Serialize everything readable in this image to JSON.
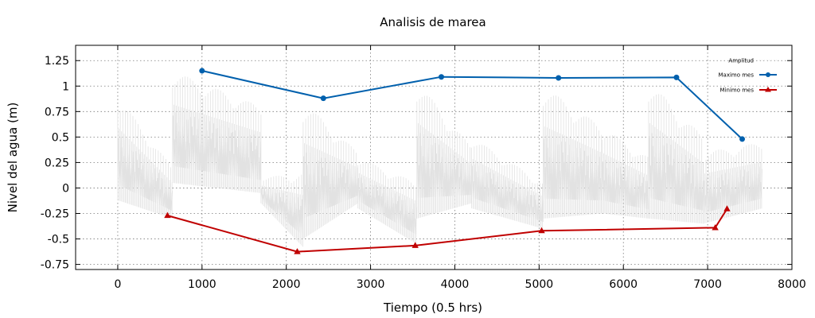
{
  "chart_data": {
    "type": "line",
    "title": "Analisis de marea",
    "xlabel": "Tiempo (0.5 hrs)",
    "ylabel": "Nivel del agua (m)",
    "xlim": [
      -500,
      8000
    ],
    "ylim": [
      -0.8,
      1.4
    ],
    "xticks": [
      0,
      1000,
      2000,
      3000,
      4000,
      5000,
      6000,
      7000,
      8000
    ],
    "xtick_labels": [
      "0",
      "1000",
      "2000",
      "3000",
      "4000",
      "5000",
      "6000",
      "7000",
      "8000"
    ],
    "yticks": [
      -0.75,
      -0.5,
      -0.25,
      0,
      0.25,
      0.5,
      0.75,
      1,
      1.25
    ],
    "ytick_labels": [
      "-0.75",
      "-0.5",
      "-0.25",
      "0",
      "0.25",
      "0.5",
      "0.75",
      "1",
      "1.25"
    ],
    "grid": true,
    "legend_position": "top-right",
    "series": [
      {
        "name": "Amplitud",
        "color": "#e2e2e2",
        "style": "dense-points",
        "x_range": [
          0,
          7650
        ],
        "segments": [
          {
            "x": [
              0,
              650
            ],
            "low": [
              -0.12,
              -0.3
            ],
            "high": [
              0.9,
              0.2
            ]
          },
          {
            "x": [
              650,
              1700
            ],
            "low": [
              0.05,
              -0.05
            ],
            "high": [
              1.15,
              0.8
            ]
          },
          {
            "x": [
              1700,
              2200
            ],
            "low": [
              -0.15,
              -0.58
            ],
            "high": [
              0.1,
              0.15
            ]
          },
          {
            "x": [
              2200,
              2850
            ],
            "low": [
              -0.5,
              -0.15
            ],
            "high": [
              0.85,
              0.35
            ]
          },
          {
            "x": [
              2850,
              3550
            ],
            "low": [
              -0.2,
              -0.55
            ],
            "high": [
              0.3,
              0.05
            ]
          },
          {
            "x": [
              3550,
              4200
            ],
            "low": [
              -0.3,
              -0.15
            ],
            "high": [
              1.05,
              0.4
            ]
          },
          {
            "x": [
              4200,
              5050
            ],
            "low": [
              -0.2,
              -0.4
            ],
            "high": [
              0.5,
              0.05
            ]
          },
          {
            "x": [
              5050,
              5750
            ],
            "low": [
              -0.3,
              -0.25
            ],
            "high": [
              1.0,
              0.6
            ]
          },
          {
            "x": [
              5750,
              6300
            ],
            "low": [
              -0.25,
              -0.3
            ],
            "high": [
              0.6,
              0.3
            ]
          },
          {
            "x": [
              6300,
              6950
            ],
            "low": [
              -0.3,
              -0.35
            ],
            "high": [
              1.05,
              0.5
            ]
          },
          {
            "x": [
              6950,
              7650
            ],
            "low": [
              -0.35,
              -0.2
            ],
            "high": [
              0.35,
              0.45
            ]
          }
        ]
      },
      {
        "name": "Maximo mes",
        "color": "#0060ad",
        "marker": "circle",
        "x": [
          1000,
          2440,
          3840,
          5230,
          6630,
          7410
        ],
        "y": [
          1.15,
          0.88,
          1.09,
          1.08,
          1.085,
          0.48
        ]
      },
      {
        "name": "Minimo mes",
        "color": "#c00000",
        "marker": "triangle",
        "x": [
          590,
          2130,
          3530,
          5030,
          7090,
          7230
        ],
        "y": [
          -0.27,
          -0.625,
          -0.565,
          -0.42,
          -0.39,
          -0.205
        ]
      }
    ]
  }
}
